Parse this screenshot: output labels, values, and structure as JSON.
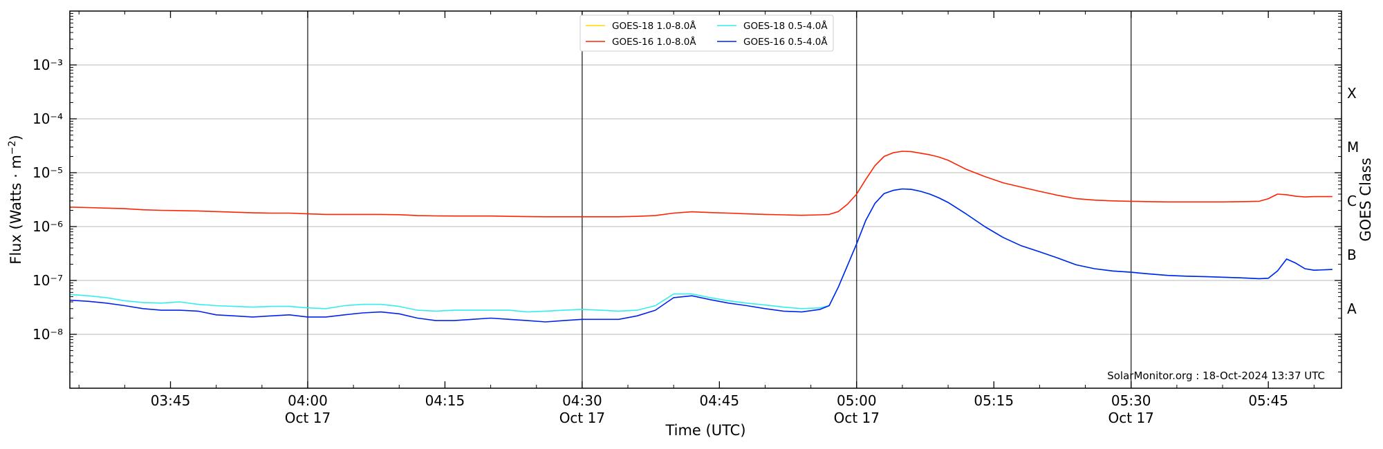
{
  "chart_data": {
    "type": "line",
    "title": "",
    "xlabel": "Time (UTC)",
    "ylabel": "Flux (Watts · m⁻²)",
    "ylabel_right": "GOES Class",
    "yscale": "log",
    "ylim": [
      1e-09,
      0.01
    ],
    "xlim": [
      "2024-10-17T03:34",
      "2024-10-17T05:53"
    ],
    "grid": "horizontal major gridlines",
    "legend_position": "top-center",
    "watermark": "SolarMonitor.org : 18-Oct-2024 13:37 UTC",
    "y_ticks": [
      {
        "value": 1e-08,
        "label": "10⁻⁸"
      },
      {
        "value": 1e-07,
        "label": "10⁻⁷"
      },
      {
        "value": 1e-06,
        "label": "10⁻⁶"
      },
      {
        "value": 1e-05,
        "label": "10⁻⁵"
      },
      {
        "value": 0.0001,
        "label": "10⁻⁴"
      },
      {
        "value": 0.001,
        "label": "10⁻³"
      }
    ],
    "goes_classes": [
      {
        "label": "A",
        "value": 3e-08
      },
      {
        "label": "B",
        "value": 3e-07
      },
      {
        "label": "C",
        "value": 3e-06
      },
      {
        "label": "M",
        "value": 3e-05
      },
      {
        "label": "X",
        "value": 0.0003
      }
    ],
    "x_ticks": [
      {
        "time": "03:45",
        "label": "03:45",
        "date": ""
      },
      {
        "time": "04:00",
        "label": "04:00",
        "date": "Oct 17"
      },
      {
        "time": "04:15",
        "label": "04:15",
        "date": ""
      },
      {
        "time": "04:30",
        "label": "04:30",
        "date": "Oct 17"
      },
      {
        "time": "04:45",
        "label": "04:45",
        "date": ""
      },
      {
        "time": "05:00",
        "label": "05:00",
        "date": "Oct 17"
      },
      {
        "time": "05:15",
        "label": "05:15",
        "date": ""
      },
      {
        "time": "05:30",
        "label": "05:30",
        "date": "Oct 17"
      },
      {
        "time": "05:45",
        "label": "05:45",
        "date": ""
      }
    ],
    "day_markers": [
      "04:00",
      "04:30",
      "05:00",
      "05:30"
    ],
    "series": [
      {
        "name": "GOES-18 1.0-8.0Å",
        "color": "#ffd700",
        "x": [],
        "y": []
      },
      {
        "name": "GOES-16 1.0-8.0Å",
        "color": "#ff2200",
        "x": [
          "03:34",
          "03:36",
          "03:38",
          "03:40",
          "03:42",
          "03:44",
          "03:46",
          "03:48",
          "03:50",
          "03:52",
          "03:54",
          "03:56",
          "03:58",
          "04:00",
          "04:02",
          "04:04",
          "04:06",
          "04:08",
          "04:10",
          "04:12",
          "04:14",
          "04:16",
          "04:18",
          "04:20",
          "04:22",
          "04:24",
          "04:26",
          "04:28",
          "04:30",
          "04:32",
          "04:34",
          "04:36",
          "04:38",
          "04:40",
          "04:42",
          "04:44",
          "04:46",
          "04:48",
          "04:50",
          "04:52",
          "04:54",
          "04:56",
          "04:57",
          "04:58",
          "04:59",
          "05:00",
          "05:01",
          "05:02",
          "05:03",
          "05:04",
          "05:05",
          "05:06",
          "05:07",
          "05:08",
          "05:09",
          "05:10",
          "05:12",
          "05:14",
          "05:16",
          "05:18",
          "05:20",
          "05:22",
          "05:24",
          "05:26",
          "05:28",
          "05:30",
          "05:32",
          "05:34",
          "05:36",
          "05:38",
          "05:40",
          "05:42",
          "05:44",
          "05:45",
          "05:46",
          "05:47",
          "05:48",
          "05:49",
          "05:50",
          "05:52"
        ],
        "y": [
          2.3e-06,
          2.25e-06,
          2.2e-06,
          2.15e-06,
          2.05e-06,
          2e-06,
          1.98e-06,
          1.95e-06,
          1.9e-06,
          1.85e-06,
          1.8e-06,
          1.78e-06,
          1.78e-06,
          1.72e-06,
          1.68e-06,
          1.68e-06,
          1.68e-06,
          1.68e-06,
          1.66e-06,
          1.6e-06,
          1.58e-06,
          1.57e-06,
          1.57e-06,
          1.57e-06,
          1.55e-06,
          1.53e-06,
          1.52e-06,
          1.52e-06,
          1.52e-06,
          1.52e-06,
          1.52e-06,
          1.55e-06,
          1.6e-06,
          1.78e-06,
          1.88e-06,
          1.82e-06,
          1.78e-06,
          1.72e-06,
          1.68e-06,
          1.65e-06,
          1.62e-06,
          1.65e-06,
          1.68e-06,
          1.9e-06,
          2.6e-06,
          4e-06,
          7.5e-06,
          1.35e-05,
          2e-05,
          2.35e-05,
          2.5e-05,
          2.45e-05,
          2.3e-05,
          2.15e-05,
          1.95e-05,
          1.7e-05,
          1.15e-05,
          8.5e-06,
          6.5e-06,
          5.4e-06,
          4.5e-06,
          3.8e-06,
          3.3e-06,
          3.1e-06,
          3e-06,
          2.95e-06,
          2.9e-06,
          2.87e-06,
          2.87e-06,
          2.87e-06,
          2.87e-06,
          2.9e-06,
          2.95e-06,
          3.3e-06,
          4e-06,
          3.9e-06,
          3.65e-06,
          3.55e-06,
          3.6e-06,
          3.6e-06
        ]
      },
      {
        "name": "GOES-18 0.5-4.0Å",
        "color": "#33eeee",
        "x": [
          "03:34",
          "03:36",
          "03:38",
          "03:40",
          "03:42",
          "03:44",
          "03:46",
          "03:48",
          "03:50",
          "03:52",
          "03:54",
          "03:56",
          "03:58",
          "04:00",
          "04:02",
          "04:04",
          "04:06",
          "04:08",
          "04:10",
          "04:12",
          "04:14",
          "04:16",
          "04:18",
          "04:20",
          "04:22",
          "04:24",
          "04:26",
          "04:28",
          "04:30",
          "04:32",
          "04:34",
          "04:36",
          "04:38",
          "04:40",
          "04:42",
          "04:44",
          "04:46",
          "04:48",
          "04:50",
          "04:52",
          "04:54",
          "04:56",
          "04:57",
          "04:58",
          "04:59",
          "05:00",
          "05:01",
          "05:02",
          "05:03",
          "05:04",
          "05:05",
          "05:06",
          "05:07",
          "05:08",
          "05:09",
          "05:10",
          "05:12",
          "05:14",
          "05:16",
          "05:18",
          "05:20",
          "05:22",
          "05:24",
          "05:26",
          "05:28",
          "05:30",
          "05:32",
          "05:34",
          "05:36",
          "05:38",
          "05:40",
          "05:42",
          "05:44",
          "05:45",
          "05:46",
          "05:47",
          "05:48",
          "05:49",
          "05:50",
          "05:52"
        ],
        "y": [
          5.5e-08,
          5.2e-08,
          4.8e-08,
          4.2e-08,
          3.9e-08,
          3.8e-08,
          4e-08,
          3.6e-08,
          3.4e-08,
          3.3e-08,
          3.2e-08,
          3.3e-08,
          3.3e-08,
          3.1e-08,
          3e-08,
          3.4e-08,
          3.6e-08,
          3.6e-08,
          3.3e-08,
          2.8e-08,
          2.7e-08,
          2.8e-08,
          2.8e-08,
          2.8e-08,
          2.8e-08,
          2.6e-08,
          2.7e-08,
          2.8e-08,
          2.9e-08,
          2.8e-08,
          2.7e-08,
          2.8e-08,
          3.4e-08,
          5.6e-08,
          5.6e-08,
          4.8e-08,
          4.2e-08,
          3.8e-08,
          3.5e-08,
          3.2e-08,
          3e-08,
          3.1e-08,
          3.4e-08,
          7.5e-08,
          1.9e-07,
          4.8e-07,
          1.3e-06,
          2.7e-06,
          4.1e-06,
          4.7e-06,
          5e-06,
          4.9e-06,
          4.5e-06,
          4e-06,
          3.4e-06,
          2.8e-06,
          1.7e-06,
          1e-06,
          6.3e-07,
          4.4e-07,
          3.4e-07,
          2.6e-07,
          1.95e-07,
          1.65e-07,
          1.5e-07,
          1.42e-07,
          1.32e-07,
          1.24e-07,
          1.2e-07,
          1.18e-07,
          1.15e-07,
          1.12e-07,
          1.08e-07,
          1.1e-07,
          1.5e-07,
          2.5e-07,
          2.1e-07,
          1.65e-07,
          1.55e-07,
          1.6e-07
        ]
      },
      {
        "name": "GOES-16 0.5-4.0Å",
        "color": "#0022ee",
        "x": [
          "03:34",
          "03:36",
          "03:38",
          "03:40",
          "03:42",
          "03:44",
          "03:46",
          "03:48",
          "03:50",
          "03:52",
          "03:54",
          "03:56",
          "03:58",
          "04:00",
          "04:02",
          "04:04",
          "04:06",
          "04:08",
          "04:10",
          "04:12",
          "04:14",
          "04:16",
          "04:18",
          "04:20",
          "04:22",
          "04:24",
          "04:26",
          "04:28",
          "04:30",
          "04:32",
          "04:34",
          "04:36",
          "04:38",
          "04:40",
          "04:42",
          "04:44",
          "04:46",
          "04:48",
          "04:50",
          "04:52",
          "04:54",
          "04:56",
          "04:57",
          "04:58",
          "04:59",
          "05:00",
          "05:01",
          "05:02",
          "05:03",
          "05:04",
          "05:05",
          "05:06",
          "05:07",
          "05:08",
          "05:09",
          "05:10",
          "05:12",
          "05:14",
          "05:16",
          "05:18",
          "05:20",
          "05:22",
          "05:24",
          "05:26",
          "05:28",
          "05:30",
          "05:32",
          "05:34",
          "05:36",
          "05:38",
          "05:40",
          "05:42",
          "05:44",
          "05:45",
          "05:46",
          "05:47",
          "05:48",
          "05:49",
          "05:50",
          "05:52"
        ],
        "y": [
          4.3e-08,
          4.1e-08,
          3.8e-08,
          3.4e-08,
          3e-08,
          2.8e-08,
          2.8e-08,
          2.7e-08,
          2.3e-08,
          2.2e-08,
          2.1e-08,
          2.2e-08,
          2.3e-08,
          2.1e-08,
          2.1e-08,
          2.3e-08,
          2.5e-08,
          2.6e-08,
          2.4e-08,
          2e-08,
          1.8e-08,
          1.8e-08,
          1.9e-08,
          2e-08,
          1.9e-08,
          1.8e-08,
          1.7e-08,
          1.8e-08,
          1.9e-08,
          1.9e-08,
          1.9e-08,
          2.2e-08,
          2.8e-08,
          4.8e-08,
          5.2e-08,
          4.4e-08,
          3.8e-08,
          3.4e-08,
          3e-08,
          2.7e-08,
          2.6e-08,
          2.9e-08,
          3.4e-08,
          7.5e-08,
          1.9e-07,
          4.8e-07,
          1.3e-06,
          2.7e-06,
          4.1e-06,
          4.7e-06,
          5e-06,
          4.9e-06,
          4.5e-06,
          4e-06,
          3.4e-06,
          2.8e-06,
          1.7e-06,
          1e-06,
          6.3e-07,
          4.4e-07,
          3.4e-07,
          2.6e-07,
          1.95e-07,
          1.65e-07,
          1.5e-07,
          1.42e-07,
          1.32e-07,
          1.24e-07,
          1.2e-07,
          1.18e-07,
          1.15e-07,
          1.12e-07,
          1.08e-07,
          1.1e-07,
          1.5e-07,
          2.5e-07,
          2.1e-07,
          1.65e-07,
          1.55e-07,
          1.6e-07
        ]
      }
    ]
  }
}
